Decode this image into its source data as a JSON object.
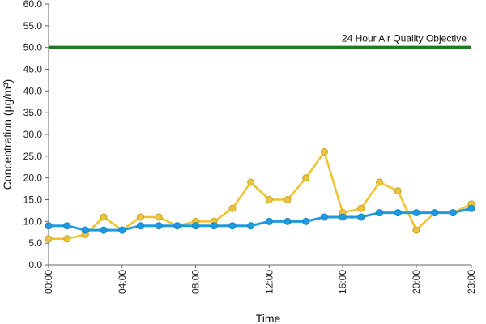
{
  "chart_data": {
    "type": "line",
    "title": "",
    "xlabel": "Time",
    "ylabel": "Concentration (µg/m³)",
    "ylim": [
      0,
      60
    ],
    "y_ticks": [
      "0.0",
      "5.0",
      "10.0",
      "15.0",
      "20.0",
      "25.0",
      "30.0",
      "35.0",
      "40.0",
      "45.0",
      "50.0",
      "55.0",
      "60.0"
    ],
    "y_tick_values": [
      0,
      5,
      10,
      15,
      20,
      25,
      30,
      35,
      40,
      45,
      50,
      55,
      60
    ],
    "x_ticks": [
      "00:00",
      "04:00",
      "08:00",
      "12:00",
      "16:00",
      "20:00",
      "23:00"
    ],
    "x_tick_hours": [
      0,
      4,
      8,
      12,
      16,
      20,
      23
    ],
    "x": [
      "00:00",
      "01:00",
      "02:00",
      "03:00",
      "04:00",
      "05:00",
      "06:00",
      "07:00",
      "08:00",
      "09:00",
      "10:00",
      "11:00",
      "12:00",
      "13:00",
      "14:00",
      "15:00",
      "16:00",
      "17:00",
      "18:00",
      "19:00",
      "20:00",
      "21:00",
      "22:00",
      "23:00"
    ],
    "series": [
      {
        "color": "#F2C12E",
        "marker_color": "#E9C540",
        "values": [
          6,
          6,
          7,
          11,
          8,
          11,
          11,
          9,
          10,
          10,
          13,
          19,
          15,
          15,
          20,
          26,
          12,
          13,
          19,
          17,
          8,
          12,
          12,
          14
        ]
      },
      {
        "color": "#1E9BE0",
        "marker_color": "#1E9BE0",
        "values": [
          9,
          9,
          8,
          8,
          8,
          9,
          9,
          9,
          9,
          9,
          9,
          9,
          10,
          10,
          10,
          11,
          11,
          11,
          12,
          12,
          12,
          12,
          12,
          13
        ]
      }
    ],
    "reference_line": {
      "value": 50,
      "label": "24 Hour Air Quality Objective",
      "color": "#1E7A1E"
    },
    "grid": false,
    "legend": "none"
  }
}
